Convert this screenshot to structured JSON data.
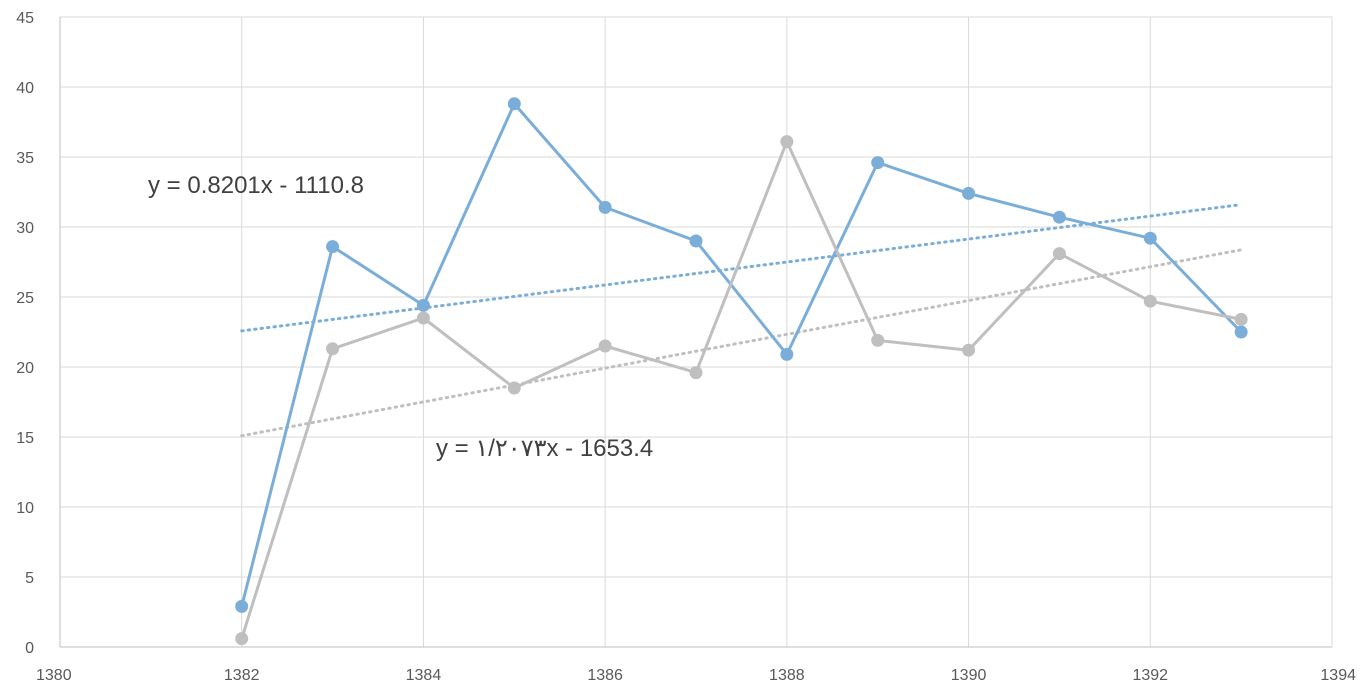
{
  "chart_data": {
    "type": "line",
    "xlim": [
      1380,
      1394
    ],
    "ylim": [
      0,
      45
    ],
    "x_ticks": [
      "1380",
      "1382",
      "1384",
      "1386",
      "1388",
      "1390",
      "1392",
      "1394"
    ],
    "y_ticks": [
      "0",
      "5",
      "10",
      "15",
      "20",
      "25",
      "30",
      "35",
      "40",
      "45"
    ],
    "grid": true,
    "legend": "none",
    "x": [
      1382,
      1383,
      1384,
      1385,
      1386,
      1387,
      1388,
      1389,
      1390,
      1391,
      1392,
      1393
    ],
    "series": [
      {
        "color": "#7aaed9",
        "values": [
          2.9,
          28.6,
          24.4,
          38.8,
          31.4,
          29.0,
          20.9,
          34.6,
          32.4,
          30.7,
          29.2,
          22.5
        ],
        "trendline": {
          "slope": 0.8201,
          "intercept": -1110.8,
          "style": "dotted"
        }
      },
      {
        "color": "#bfbfbf",
        "values": [
          0.6,
          21.3,
          23.5,
          18.5,
          21.5,
          19.6,
          36.1,
          21.9,
          21.2,
          28.1,
          24.7,
          23.4
        ],
        "trendline": {
          "slope": 1.2073,
          "intercept": -1653.4,
          "style": "dotted"
        }
      }
    ],
    "annotations": [
      {
        "text": "y = 0.8201x - 1110.8",
        "series": 0
      },
      {
        "text": "y = ١/٢٠٧٣x - 1653.4",
        "series": 1
      }
    ]
  }
}
